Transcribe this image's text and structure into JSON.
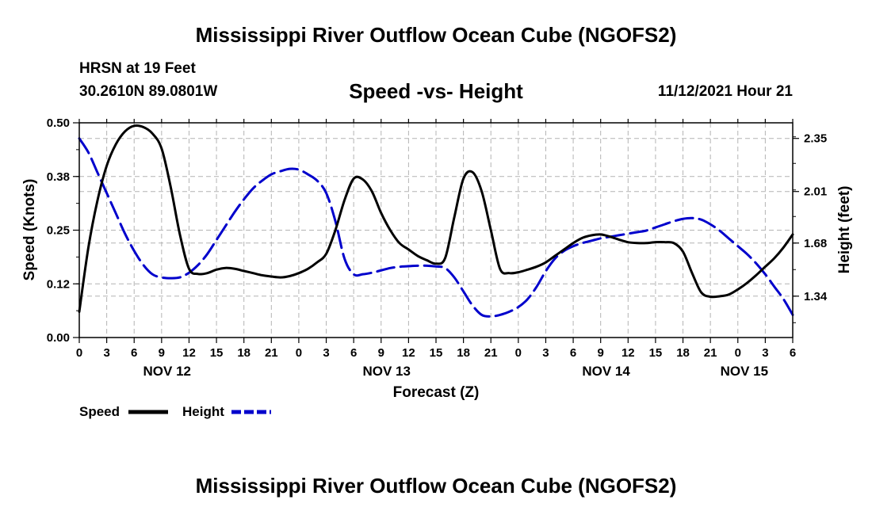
{
  "header": {
    "title": "Mississippi River Outflow Ocean Cube (NGOFS2)",
    "station": "HRSN at 19 Feet",
    "coords": "30.2610N  89.0801W",
    "subtitle": "Speed -vs- Height",
    "datetime": "11/12/2021 Hour 21"
  },
  "footer": {
    "title": "Mississippi River Outflow Ocean Cube (NGOFS2)"
  },
  "colors": {
    "speed": "#000000",
    "height": "#0000cc",
    "grid": "#b4b4b4"
  },
  "chart_data": {
    "type": "line",
    "xlabel": "Forecast (Z)",
    "ylabel_left": "Speed (Knots)",
    "ylabel_right": "Height (feet)",
    "x_unit": "hours since Nov 12 00Z",
    "xlim": [
      0,
      78
    ],
    "ylim_left": [
      0,
      0.5
    ],
    "ylim_right": [
      1.075,
      2.45
    ],
    "left_ticks": [
      {
        "value": 0,
        "label": "0.00"
      },
      {
        "value": 0.125,
        "label": "0.12"
      },
      {
        "value": 0.25,
        "label": "0.25"
      },
      {
        "value": 0.375,
        "label": "0.38"
      },
      {
        "value": 0.5,
        "label": "0.50"
      }
    ],
    "right_ticks": [
      {
        "value": 1.34,
        "label": "1.34"
      },
      {
        "value": 1.68,
        "label": "1.68"
      },
      {
        "value": 2.01,
        "label": "2.01"
      },
      {
        "value": 2.35,
        "label": "2.35"
      }
    ],
    "x_ticks": [
      {
        "x": 0,
        "label": "0"
      },
      {
        "x": 3,
        "label": "3"
      },
      {
        "x": 6,
        "label": "6"
      },
      {
        "x": 9,
        "label": "9"
      },
      {
        "x": 12,
        "label": "12"
      },
      {
        "x": 15,
        "label": "15"
      },
      {
        "x": 18,
        "label": "18"
      },
      {
        "x": 21,
        "label": "21"
      },
      {
        "x": 24,
        "label": "0"
      },
      {
        "x": 27,
        "label": "3"
      },
      {
        "x": 30,
        "label": "6"
      },
      {
        "x": 33,
        "label": "9"
      },
      {
        "x": 36,
        "label": "12"
      },
      {
        "x": 39,
        "label": "15"
      },
      {
        "x": 42,
        "label": "18"
      },
      {
        "x": 45,
        "label": "21"
      },
      {
        "x": 48,
        "label": "0"
      },
      {
        "x": 51,
        "label": "3"
      },
      {
        "x": 54,
        "label": "6"
      },
      {
        "x": 57,
        "label": "9"
      },
      {
        "x": 60,
        "label": "12"
      },
      {
        "x": 63,
        "label": "15"
      },
      {
        "x": 66,
        "label": "18"
      },
      {
        "x": 69,
        "label": "21"
      },
      {
        "x": 72,
        "label": "0"
      },
      {
        "x": 75,
        "label": "3"
      },
      {
        "x": 78,
        "label": "6"
      }
    ],
    "day_labels": [
      {
        "x": 9.6,
        "label": "NOV 12"
      },
      {
        "x": 33.6,
        "label": "NOV 13"
      },
      {
        "x": 57.6,
        "label": "NOV 14"
      },
      {
        "x": 72.7,
        "label": "NOV 15"
      }
    ],
    "series": [
      {
        "name": "Speed",
        "axis": "left",
        "style": "solid",
        "points": [
          [
            0,
            0.06
          ],
          [
            1,
            0.21
          ],
          [
            2,
            0.32
          ],
          [
            3,
            0.4
          ],
          [
            4,
            0.45
          ],
          [
            5,
            0.48
          ],
          [
            6,
            0.493
          ],
          [
            7,
            0.49
          ],
          [
            8,
            0.475
          ],
          [
            9,
            0.44
          ],
          [
            10,
            0.35
          ],
          [
            11,
            0.24
          ],
          [
            12,
            0.16
          ],
          [
            13,
            0.148
          ],
          [
            14,
            0.15
          ],
          [
            15,
            0.158
          ],
          [
            16,
            0.162
          ],
          [
            17,
            0.16
          ],
          [
            18,
            0.155
          ],
          [
            19,
            0.15
          ],
          [
            20,
            0.145
          ],
          [
            21,
            0.142
          ],
          [
            22,
            0.14
          ],
          [
            23,
            0.143
          ],
          [
            24,
            0.15
          ],
          [
            25,
            0.16
          ],
          [
            26,
            0.175
          ],
          [
            27,
            0.195
          ],
          [
            28,
            0.25
          ],
          [
            29,
            0.32
          ],
          [
            30,
            0.37
          ],
          [
            31,
            0.368
          ],
          [
            32,
            0.34
          ],
          [
            33,
            0.29
          ],
          [
            34,
            0.25
          ],
          [
            35,
            0.22
          ],
          [
            36,
            0.205
          ],
          [
            37,
            0.19
          ],
          [
            38,
            0.18
          ],
          [
            39,
            0.172
          ],
          [
            40,
            0.185
          ],
          [
            41,
            0.28
          ],
          [
            42,
            0.37
          ],
          [
            43,
            0.385
          ],
          [
            44,
            0.34
          ],
          [
            45,
            0.25
          ],
          [
            46,
            0.16
          ],
          [
            47,
            0.15
          ],
          [
            48,
            0.152
          ],
          [
            49,
            0.158
          ],
          [
            50,
            0.165
          ],
          [
            51,
            0.175
          ],
          [
            52,
            0.19
          ],
          [
            53,
            0.205
          ],
          [
            54,
            0.22
          ],
          [
            55,
            0.232
          ],
          [
            56,
            0.238
          ],
          [
            57,
            0.24
          ],
          [
            58,
            0.235
          ],
          [
            59,
            0.228
          ],
          [
            60,
            0.222
          ],
          [
            61,
            0.22
          ],
          [
            62,
            0.22
          ],
          [
            63,
            0.222
          ],
          [
            64,
            0.222
          ],
          [
            65,
            0.22
          ],
          [
            66,
            0.2
          ],
          [
            67,
            0.15
          ],
          [
            68,
            0.105
          ],
          [
            69,
            0.095
          ],
          [
            70,
            0.096
          ],
          [
            71,
            0.1
          ],
          [
            72,
            0.112
          ],
          [
            73,
            0.127
          ],
          [
            74,
            0.145
          ],
          [
            75,
            0.165
          ],
          [
            76,
            0.185
          ],
          [
            77,
            0.21
          ],
          [
            78,
            0.24
          ]
        ]
      },
      {
        "name": "Height",
        "axis": "right",
        "style": "dashed",
        "points": [
          [
            0,
            2.35
          ],
          [
            1,
            2.26
          ],
          [
            2,
            2.13
          ],
          [
            3,
            2.0
          ],
          [
            4,
            1.87
          ],
          [
            5,
            1.74
          ],
          [
            6,
            1.63
          ],
          [
            7,
            1.54
          ],
          [
            8,
            1.48
          ],
          [
            9,
            1.46
          ],
          [
            10,
            1.455
          ],
          [
            11,
            1.46
          ],
          [
            12,
            1.49
          ],
          [
            13,
            1.54
          ],
          [
            14,
            1.61
          ],
          [
            15,
            1.7
          ],
          [
            16,
            1.79
          ],
          [
            17,
            1.88
          ],
          [
            18,
            1.96
          ],
          [
            19,
            2.03
          ],
          [
            20,
            2.08
          ],
          [
            21,
            2.12
          ],
          [
            22,
            2.14
          ],
          [
            23,
            2.155
          ],
          [
            24,
            2.15
          ],
          [
            25,
            2.12
          ],
          [
            26,
            2.08
          ],
          [
            27,
            2.0
          ],
          [
            28,
            1.82
          ],
          [
            29,
            1.58
          ],
          [
            30,
            1.48
          ],
          [
            31,
            1.48
          ],
          [
            32,
            1.49
          ],
          [
            33,
            1.505
          ],
          [
            34,
            1.52
          ],
          [
            35,
            1.528
          ],
          [
            36,
            1.532
          ],
          [
            37,
            1.535
          ],
          [
            38,
            1.535
          ],
          [
            39,
            1.53
          ],
          [
            40,
            1.52
          ],
          [
            41,
            1.46
          ],
          [
            42,
            1.37
          ],
          [
            43,
            1.28
          ],
          [
            44,
            1.22
          ],
          [
            45,
            1.21
          ],
          [
            46,
            1.22
          ],
          [
            47,
            1.24
          ],
          [
            48,
            1.27
          ],
          [
            49,
            1.32
          ],
          [
            50,
            1.4
          ],
          [
            51,
            1.5
          ],
          [
            52,
            1.58
          ],
          [
            53,
            1.63
          ],
          [
            54,
            1.66
          ],
          [
            55,
            1.68
          ],
          [
            56,
            1.695
          ],
          [
            57,
            1.71
          ],
          [
            58,
            1.72
          ],
          [
            59,
            1.73
          ],
          [
            60,
            1.74
          ],
          [
            61,
            1.75
          ],
          [
            62,
            1.76
          ],
          [
            63,
            1.78
          ],
          [
            64,
            1.8
          ],
          [
            65,
            1.82
          ],
          [
            66,
            1.835
          ],
          [
            67,
            1.84
          ],
          [
            68,
            1.83
          ],
          [
            69,
            1.8
          ],
          [
            70,
            1.76
          ],
          [
            71,
            1.71
          ],
          [
            72,
            1.66
          ],
          [
            73,
            1.61
          ],
          [
            74,
            1.55
          ],
          [
            75,
            1.48
          ],
          [
            76,
            1.4
          ],
          [
            77,
            1.32
          ],
          [
            78,
            1.22
          ]
        ]
      }
    ]
  },
  "legend": {
    "speed_label": "Speed",
    "height_label": "Height"
  }
}
